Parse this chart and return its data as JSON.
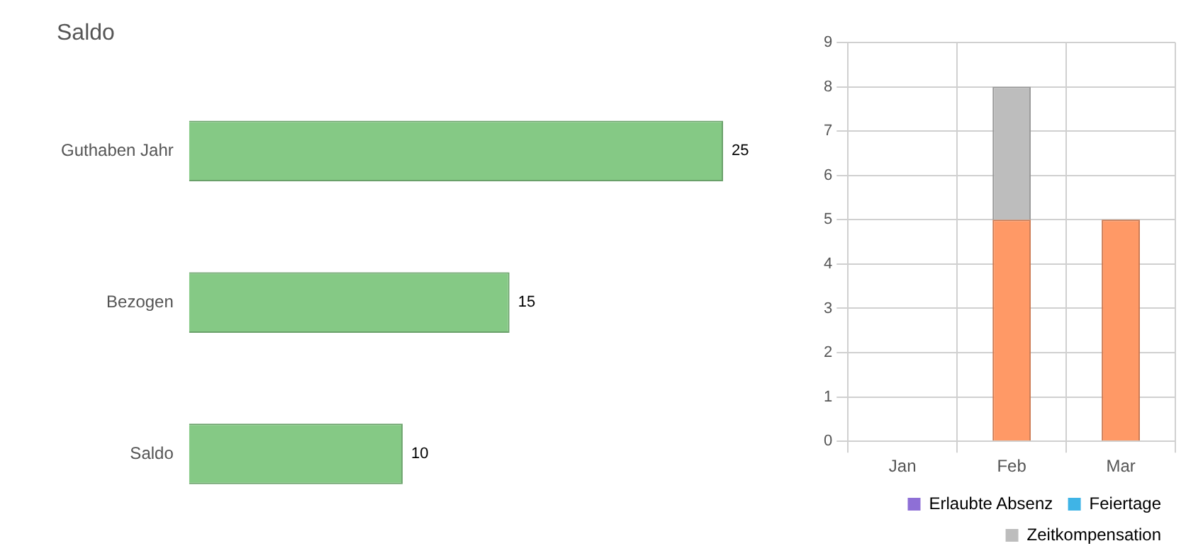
{
  "chart_data": [
    {
      "type": "bar",
      "title": "Saldo",
      "orientation": "horizontal",
      "categories": [
        "Guthaben Jahr",
        "Bezogen",
        "Saldo"
      ],
      "values": [
        25,
        15,
        10
      ],
      "color": "#85c985",
      "data_labels": true
    },
    {
      "type": "bar",
      "stacked": true,
      "categories": [
        "Jan",
        "Feb",
        "Mar"
      ],
      "ylim": [
        0,
        9
      ],
      "yticks": [
        0,
        1,
        2,
        3,
        4,
        5,
        6,
        7,
        8,
        9
      ],
      "grid": true,
      "legend": "bottom right",
      "series": [
        {
          "color": "#ff9966",
          "values": [
            0,
            5,
            5
          ]
        },
        {
          "name": "Erlaubte Absenz",
          "color": "#8e6fd6",
          "values": [
            0,
            0,
            0
          ]
        },
        {
          "name": "Feiertage",
          "color": "#3fb4e6",
          "values": [
            0,
            0,
            0
          ]
        },
        {
          "name": "Zeitkompensation",
          "color": "#bdbdbd",
          "values": [
            0,
            3,
            0
          ]
        }
      ]
    }
  ]
}
